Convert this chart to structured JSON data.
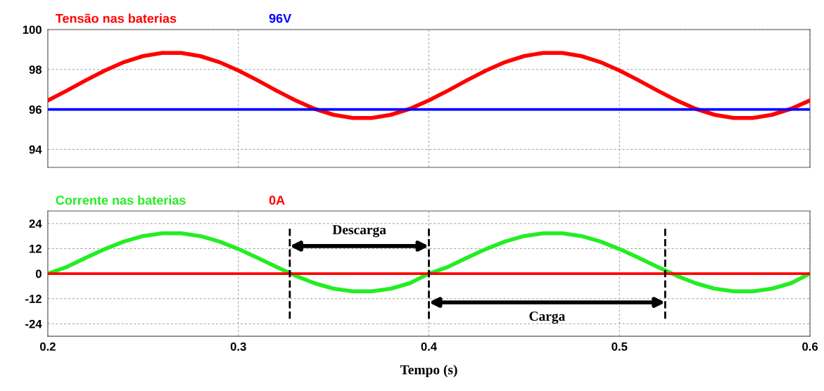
{
  "chart_data": [
    {
      "type": "line",
      "xlim": [
        0.2,
        0.6
      ],
      "xticks": [
        0.2,
        0.3,
        0.4,
        0.5,
        0.6
      ],
      "ylim": [
        93.1,
        100
      ],
      "yticks": [
        94,
        96,
        98,
        100
      ],
      "grid": true,
      "tick_labels": "y",
      "legend": "top left",
      "line_style": "solid",
      "x": [
        0.2,
        0.21,
        0.22,
        0.23,
        0.24,
        0.25,
        0.26,
        0.27,
        0.28,
        0.29,
        0.3,
        0.31,
        0.32,
        0.33,
        0.34,
        0.35,
        0.36,
        0.37,
        0.38,
        0.39,
        0.4,
        0.41,
        0.42,
        0.43,
        0.44,
        0.45,
        0.46,
        0.47,
        0.48,
        0.49,
        0.5,
        0.51,
        0.52,
        0.53,
        0.54,
        0.55,
        0.56,
        0.57,
        0.58,
        0.59,
        0.6
      ],
      "series": [
        {
          "name": "Tensão nas baterias",
          "color": "#ff0000",
          "values": [
            96.45,
            96.94,
            97.46,
            97.95,
            98.37,
            98.67,
            98.83,
            98.83,
            98.67,
            98.37,
            97.95,
            97.46,
            96.94,
            96.45,
            96.03,
            95.73,
            95.57,
            95.57,
            95.73,
            96.03,
            96.45,
            96.94,
            97.46,
            97.95,
            98.37,
            98.67,
            98.83,
            98.83,
            98.67,
            98.37,
            97.95,
            97.46,
            96.94,
            96.45,
            96.03,
            95.73,
            95.57,
            95.57,
            95.73,
            96.03,
            96.45
          ]
        },
        {
          "name": "96V",
          "color": "#0000ff",
          "values": [
            96,
            96,
            96,
            96,
            96,
            96,
            96,
            96,
            96,
            96,
            96,
            96,
            96,
            96,
            96,
            96,
            96,
            96,
            96,
            96,
            96,
            96,
            96,
            96,
            96,
            96,
            96,
            96,
            96,
            96,
            96,
            96,
            96,
            96,
            96,
            96,
            96,
            96,
            96,
            96,
            96
          ]
        }
      ]
    },
    {
      "type": "line",
      "xlim": [
        0.2,
        0.6
      ],
      "xticks": [
        0.2,
        0.3,
        0.4,
        0.5,
        0.6
      ],
      "ylim": [
        -30,
        30
      ],
      "yticks": [
        -24,
        -12,
        0,
        12,
        24
      ],
      "grid": true,
      "legend": "top left",
      "line_style": "solid",
      "xlabel": "Tempo (s)",
      "x": [
        0.2,
        0.21,
        0.22,
        0.23,
        0.24,
        0.25,
        0.26,
        0.27,
        0.28,
        0.29,
        0.3,
        0.31,
        0.32,
        0.33,
        0.34,
        0.35,
        0.36,
        0.37,
        0.38,
        0.39,
        0.4,
        0.41,
        0.42,
        0.43,
        0.44,
        0.45,
        0.46,
        0.47,
        0.48,
        0.49,
        0.5,
        0.51,
        0.52,
        0.53,
        0.54,
        0.55,
        0.56,
        0.57,
        0.58,
        0.59,
        0.6
      ],
      "series": [
        {
          "name": "Corrente nas baterias",
          "color": "#22ee22",
          "values": [
            0,
            3.2,
            7.6,
            11.8,
            15.4,
            18.0,
            19.3,
            19.3,
            18.0,
            15.4,
            11.8,
            7.6,
            3.2,
            -1.0,
            -4.6,
            -7.2,
            -8.5,
            -8.5,
            -7.2,
            -4.6,
            0,
            3.2,
            7.6,
            11.8,
            15.4,
            18.0,
            19.3,
            19.3,
            18.0,
            15.4,
            11.8,
            7.6,
            3.2,
            -1.0,
            -4.6,
            -7.2,
            -8.5,
            -8.5,
            -7.2,
            -4.6,
            0
          ]
        },
        {
          "name": "0A",
          "color": "#ff0000",
          "values": [
            0,
            0,
            0,
            0,
            0,
            0,
            0,
            0,
            0,
            0,
            0,
            0,
            0,
            0,
            0,
            0,
            0,
            0,
            0,
            0,
            0,
            0,
            0,
            0,
            0,
            0,
            0,
            0,
            0,
            0,
            0,
            0,
            0,
            0,
            0,
            0,
            0,
            0,
            0,
            0,
            0
          ]
        }
      ],
      "ref_lines": [
        {
          "axis": "x",
          "value": 0.327,
          "color": "#000000",
          "line_style": "dashed"
        },
        {
          "axis": "x",
          "value": 0.4,
          "color": "#000000",
          "line_style": "dashed"
        },
        {
          "axis": "x",
          "value": 0.524,
          "color": "#000000",
          "line_style": "dashed"
        }
      ],
      "annotations": [
        "Descarga",
        "Carga"
      ]
    }
  ]
}
